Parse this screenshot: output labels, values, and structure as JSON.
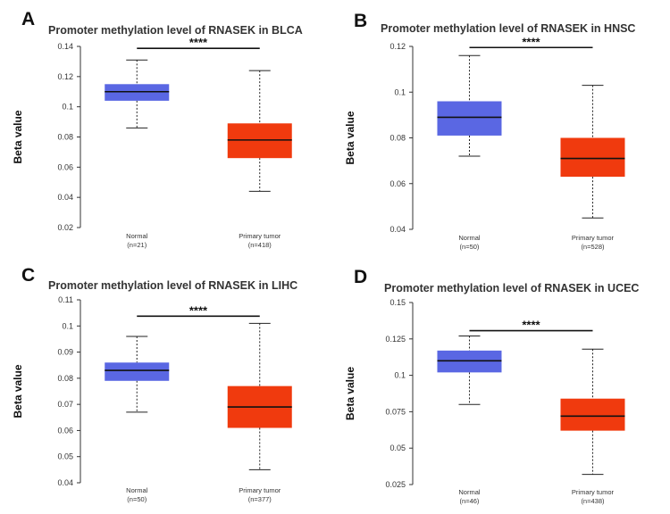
{
  "colors": {
    "normal": "#5a67e3",
    "tumor": "#f03a0e",
    "median": "#111111"
  },
  "chart_data": [
    {
      "panel": "A",
      "type": "box",
      "title": "Promoter methylation level of RNASEK in BLCA",
      "ylabel": "Beta value",
      "ylim": [
        0.02,
        0.14
      ],
      "yticks": [
        "0.02",
        "0.04",
        "0.06",
        "0.08",
        "0.1",
        "0.12",
        "0.14"
      ],
      "significance": "****",
      "groups": [
        {
          "name": "Normal",
          "n": "(n=21)",
          "min": 0.086,
          "q1": 0.104,
          "median": 0.11,
          "q3": 0.115,
          "max": 0.131
        },
        {
          "name": "Primary tumor",
          "n": "(n=418)",
          "min": 0.044,
          "q1": 0.066,
          "median": 0.078,
          "q3": 0.089,
          "max": 0.124
        }
      ]
    },
    {
      "panel": "B",
      "type": "box",
      "title": "Promoter methylation level of RNASEK in HNSC",
      "ylabel": "Beta value",
      "ylim": [
        0.04,
        0.12
      ],
      "yticks": [
        "0.04",
        "0.06",
        "0.08",
        "0.1",
        "0.12"
      ],
      "significance": "****",
      "groups": [
        {
          "name": "Normal",
          "n": "(n=50)",
          "min": 0.072,
          "q1": 0.081,
          "median": 0.089,
          "q3": 0.096,
          "max": 0.116
        },
        {
          "name": "Primary tumor",
          "n": "(n=528)",
          "min": 0.045,
          "q1": 0.063,
          "median": 0.071,
          "q3": 0.08,
          "max": 0.103
        }
      ]
    },
    {
      "panel": "C",
      "type": "box",
      "title": "Promoter methylation level of RNASEK in LIHC",
      "ylabel": "Beta value",
      "ylim": [
        0.04,
        0.11
      ],
      "yticks": [
        "0.04",
        "0.05",
        "0.06",
        "0.07",
        "0.08",
        "0.09",
        "0.1",
        "0.11"
      ],
      "significance": "****",
      "groups": [
        {
          "name": "Normal",
          "n": "(n=50)",
          "min": 0.067,
          "q1": 0.079,
          "median": 0.083,
          "q3": 0.086,
          "max": 0.096
        },
        {
          "name": "Primary tumor",
          "n": "(n=377)",
          "min": 0.045,
          "q1": 0.061,
          "median": 0.069,
          "q3": 0.077,
          "max": 0.101
        }
      ]
    },
    {
      "panel": "D",
      "type": "box",
      "title": "Promoter methylation level of RNASEK in UCEC",
      "ylabel": "Beta value",
      "ylim": [
        0.025,
        0.15
      ],
      "yticks": [
        "0.025",
        "0.05",
        "0.075",
        "0.1",
        "0.125",
        "0.15"
      ],
      "significance": "****",
      "groups": [
        {
          "name": "Normal",
          "n": "(n=46)",
          "min": 0.08,
          "q1": 0.102,
          "median": 0.11,
          "q3": 0.117,
          "max": 0.127
        },
        {
          "name": "Primary tumor",
          "n": "(n=438)",
          "min": 0.032,
          "q1": 0.062,
          "median": 0.072,
          "q3": 0.084,
          "max": 0.118
        }
      ]
    }
  ]
}
